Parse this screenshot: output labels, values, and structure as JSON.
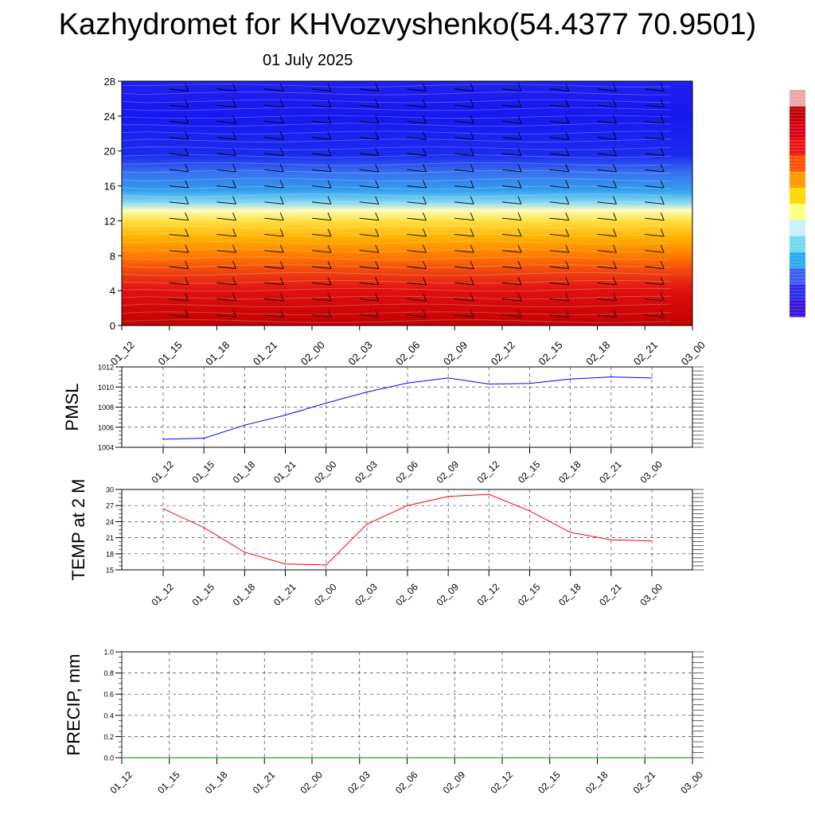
{
  "title": "Kazhydromet for KHVozvyshenko(54.4377 70.9501)",
  "subtitle": "01 July 2025",
  "colorbar": {
    "stops": [
      "#3a10d8",
      "#2a2ae8",
      "#3a5cf0",
      "#28a8f0",
      "#70d8f0",
      "#c8f0ff",
      "#ffff80",
      "#ffd800",
      "#ff9800",
      "#ff5000",
      "#f01010",
      "#d80010",
      "#c00000",
      "#e8a8a8"
    ]
  },
  "chart_data": [
    {
      "type": "heatmap",
      "title": "",
      "xlabel": "",
      "ylabel": "",
      "x_tick_labels": [
        "01_12",
        "01_15",
        "01_18",
        "01_21",
        "02_00",
        "02_03",
        "02_06",
        "02_09",
        "02_12",
        "02_15",
        "02_18",
        "02_21",
        "03_00"
      ],
      "y_ticks": [
        0,
        4,
        8,
        12,
        16,
        20,
        24,
        28
      ],
      "ylim": [
        0,
        28
      ],
      "color_bands": [
        {
          "y": 0,
          "color": "#c40000"
        },
        {
          "y": 4,
          "color": "#e01010"
        },
        {
          "y": 6,
          "color": "#f04010"
        },
        {
          "y": 8,
          "color": "#ff7a00"
        },
        {
          "y": 10,
          "color": "#ffb000"
        },
        {
          "y": 12,
          "color": "#ffe040"
        },
        {
          "y": 13.2,
          "color": "#fffcc0"
        },
        {
          "y": 14,
          "color": "#90dcf0"
        },
        {
          "y": 15.5,
          "color": "#30a0f0"
        },
        {
          "y": 17.5,
          "color": "#3a70f0"
        },
        {
          "y": 19.5,
          "color": "#1a2cf0"
        },
        {
          "y": 24,
          "color": "#1818f0"
        },
        {
          "y": 28,
          "color": "#2020f0"
        }
      ],
      "wind_barbs": true
    },
    {
      "type": "line",
      "ylabel": "PMSL",
      "x_tick_labels": [
        "01_12",
        "01_15",
        "01_18",
        "01_21",
        "02_00",
        "02_03",
        "02_06",
        "02_09",
        "02_12",
        "02_15",
        "02_18",
        "02_21",
        "03_00"
      ],
      "y_ticks": [
        1004,
        1006,
        1008,
        1010,
        1012
      ],
      "ylim": [
        1004,
        1012
      ],
      "color": "#0000ff",
      "series": [
        {
          "values": [
            1004.8,
            1004.9,
            1006.2,
            1007.2,
            1008.4,
            1009.5,
            1010.4,
            1010.9,
            1010.3,
            1010.35,
            1010.8,
            1011.0,
            1010.9
          ]
        }
      ]
    },
    {
      "type": "line",
      "ylabel": "TEMP at 2 M",
      "x_tick_labels": [
        "01_12",
        "01_15",
        "01_18",
        "01_21",
        "02_00",
        "02_03",
        "02_06",
        "02_09",
        "02_12",
        "02_15",
        "02_18",
        "02_21",
        "03_00"
      ],
      "y_ticks": [
        15,
        18,
        21,
        24,
        27,
        30
      ],
      "ylim": [
        15,
        30
      ],
      "color": "#ff0000",
      "series": [
        {
          "values": [
            26.4,
            22.9,
            18.3,
            16.1,
            15.9,
            23.5,
            27.0,
            28.7,
            29.1,
            26.0,
            22.0,
            20.6,
            20.4
          ]
        }
      ]
    },
    {
      "type": "line",
      "ylabel": "PRECIP, mm",
      "x_tick_labels": [
        "01_12",
        "01_15",
        "01_18",
        "01_21",
        "02_00",
        "02_03",
        "02_06",
        "02_09",
        "02_12",
        "02_15",
        "02_18",
        "02_21",
        "03_00"
      ],
      "y_ticks": [
        0.0,
        0.2,
        0.4,
        0.6,
        0.8,
        1.0
      ],
      "y_tick_labels": [
        "0.0",
        "0.2",
        "0.4",
        "0.6",
        "0.8",
        "1.0"
      ],
      "ylim": [
        0,
        1
      ],
      "color": "#008000",
      "series": [
        {
          "values": [
            0,
            0,
            0,
            0,
            0,
            0,
            0,
            0,
            0,
            0,
            0,
            0,
            0
          ]
        }
      ]
    }
  ]
}
